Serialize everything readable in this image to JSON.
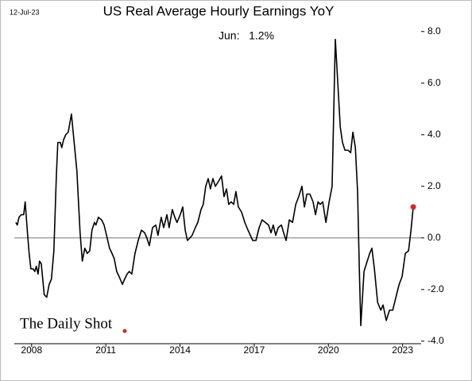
{
  "chart_data": {
    "type": "line",
    "title": "US Real Average Hourly Earnings YoY",
    "date": "12-Jul-23",
    "annotation": "Jun:   1.2%",
    "source": "The Daily Shot",
    "x": [
      2007.36,
      2007.42,
      2007.49,
      2007.58,
      2007.68,
      2007.74,
      2007.84,
      2007.9,
      2007.97,
      2008.06,
      2008.13,
      2008.19,
      2008.26,
      2008.32,
      2008.39,
      2008.51,
      2008.61,
      2008.71,
      2008.8,
      2008.9,
      2009.0,
      2009.06,
      2009.16,
      2009.22,
      2009.29,
      2009.38,
      2009.48,
      2009.61,
      2009.7,
      2009.83,
      2009.96,
      2010.05,
      2010.15,
      2010.25,
      2010.35,
      2010.44,
      2010.54,
      2010.6,
      2010.7,
      2010.83,
      2010.93,
      2011.03,
      2011.15,
      2011.25,
      2011.34,
      2011.44,
      2011.54,
      2011.67,
      2011.76,
      2011.86,
      2011.95,
      2012.05,
      2012.18,
      2012.31,
      2012.44,
      2012.57,
      2012.66,
      2012.76,
      2012.89,
      2013.02,
      2013.11,
      2013.24,
      2013.34,
      2013.47,
      2013.56,
      2013.69,
      2013.79,
      2013.88,
      2014.01,
      2014.11,
      2014.21,
      2014.3,
      2014.4,
      2014.49,
      2014.62,
      2014.72,
      2014.85,
      2014.94,
      2015.04,
      2015.14,
      2015.23,
      2015.33,
      2015.43,
      2015.56,
      2015.68,
      2015.78,
      2015.88,
      2015.97,
      2016.07,
      2016.17,
      2016.26,
      2016.36,
      2016.49,
      2016.62,
      2016.75,
      2016.94,
      2017.07,
      2017.2,
      2017.32,
      2017.45,
      2017.58,
      2017.68,
      2017.77,
      2017.87,
      2017.97,
      2018.1,
      2018.19,
      2018.29,
      2018.42,
      2018.55,
      2018.68,
      2018.8,
      2018.93,
      2019.03,
      2019.13,
      2019.25,
      2019.38,
      2019.48,
      2019.58,
      2019.67,
      2019.77,
      2019.9,
      2020.03,
      2020.15,
      2020.28,
      2020.38,
      2020.48,
      2020.57,
      2020.67,
      2020.8,
      2020.9,
      2020.99,
      2021.09,
      2021.18,
      2021.25,
      2021.31,
      2021.44,
      2021.57,
      2021.67,
      2021.76,
      2021.86,
      2021.99,
      2022.12,
      2022.21,
      2022.34,
      2022.47,
      2022.6,
      2022.73,
      2022.86,
      2022.98,
      2023.11,
      2023.24,
      2023.34,
      2023.43
    ],
    "series": [
      {
        "name": "US Real Average Hourly Earnings YoY",
        "color": "#000000",
        "values": [
          0.6,
          0.5,
          0.8,
          0.9,
          0.9,
          1.4,
          0.1,
          -0.6,
          -1.2,
          -1.2,
          -1.3,
          -1.1,
          -1.4,
          -0.9,
          -1.0,
          -2.2,
          -2.3,
          -1.8,
          -1.6,
          -0.5,
          2.4,
          3.7,
          3.7,
          3.5,
          3.8,
          4.0,
          4.1,
          4.8,
          3.9,
          2.6,
          0.2,
          -0.9,
          -0.4,
          -0.6,
          -0.5,
          0.3,
          0.6,
          0.5,
          0.8,
          0.7,
          0.5,
          0.1,
          -0.4,
          -0.6,
          -0.8,
          -1.3,
          -1.5,
          -1.8,
          -1.6,
          -1.4,
          -1.3,
          -1.4,
          -0.6,
          -0.1,
          0.3,
          0.2,
          0.0,
          -0.3,
          0.4,
          0.5,
          0.1,
          0.8,
          0.4,
          0.9,
          0.4,
          1.1,
          0.8,
          0.6,
          0.9,
          1.2,
          0.3,
          -0.1,
          0.0,
          0.1,
          0.4,
          0.6,
          1.1,
          1.3,
          2.0,
          2.3,
          1.9,
          2.3,
          2.0,
          2.2,
          2.4,
          1.6,
          1.9,
          1.3,
          1.4,
          1.3,
          1.8,
          1.2,
          1.0,
          0.6,
          0.3,
          -0.1,
          -0.1,
          0.4,
          0.7,
          0.6,
          0.5,
          0.2,
          0.5,
          0.1,
          0.4,
          0.5,
          0.2,
          -0.1,
          0.7,
          0.6,
          1.3,
          1.6,
          2.0,
          1.2,
          1.7,
          1.7,
          1.4,
          0.9,
          1.4,
          1.3,
          1.4,
          0.6,
          1.4,
          2.0,
          7.7,
          6.0,
          4.3,
          3.7,
          3.4,
          3.4,
          3.3,
          4.1,
          3.5,
          1.8,
          -1.2,
          -3.4,
          -1.3,
          -0.9,
          -0.6,
          -0.4,
          -1.2,
          -2.5,
          -2.8,
          -2.6,
          -3.2,
          -2.8,
          -2.8,
          -2.3,
          -1.8,
          -1.5,
          -0.6,
          -0.5,
          0.3,
          1.2
        ]
      }
    ],
    "last_point_color": "#d62728",
    "xlim": [
      2007.3,
      2023.75
    ],
    "xticks": [
      2008,
      2011,
      2014,
      2017,
      2020,
      2023
    ],
    "ylim": [
      -4.1,
      8.3
    ],
    "yticks": [
      {
        "value": -4,
        "label": "-4.0"
      },
      {
        "value": -2,
        "label": "-2.0"
      },
      {
        "value": 0,
        "label": "0.0"
      },
      {
        "value": 2,
        "label": "2.0"
      },
      {
        "value": 4,
        "label": "4.0"
      },
      {
        "value": 6,
        "label": "6.0"
      },
      {
        "value": 8,
        "label": "8.0"
      }
    ],
    "zero_line": true
  }
}
